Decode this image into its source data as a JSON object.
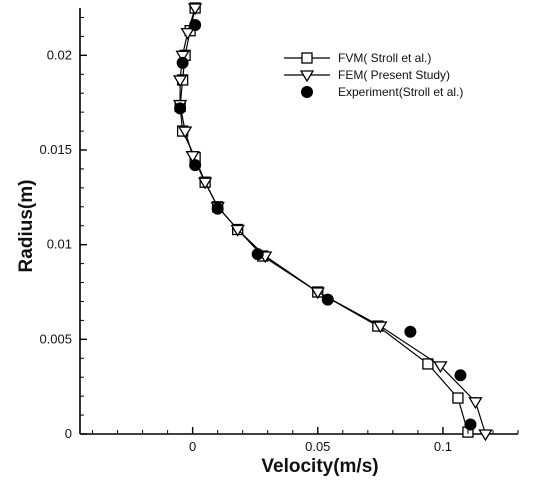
{
  "chart_data": {
    "type": "line",
    "title": "",
    "xlabel": "Velocity(m/s)",
    "ylabel": "Radius(m)",
    "xlim": [
      -0.045,
      0.13
    ],
    "ylim": [
      0,
      0.0225
    ],
    "x_ticks": [
      0,
      0.05,
      0.1
    ],
    "x_tick_labels": [
      "0",
      "0.05",
      "0.1"
    ],
    "y_ticks": [
      0,
      0.005,
      0.01,
      0.015,
      0.02
    ],
    "y_tick_labels": [
      "0",
      "0.005",
      "0.01",
      "0.015",
      "0.02"
    ],
    "grid": false,
    "legend_position": "top-right",
    "series": [
      {
        "name": "FVM( Stroll et al.)",
        "marker": "square",
        "line": true,
        "points": [
          [
            0.11,
            0.0001
          ],
          [
            0.106,
            0.0019
          ],
          [
            0.094,
            0.0037
          ],
          [
            0.074,
            0.0057
          ],
          [
            0.05,
            0.0075
          ],
          [
            0.028,
            0.0094
          ],
          [
            0.018,
            0.0108
          ],
          [
            0.01,
            0.012
          ],
          [
            0.005,
            0.0133
          ],
          [
            0.001,
            0.0146
          ],
          [
            -0.004,
            0.016
          ],
          [
            -0.005,
            0.0173
          ],
          [
            -0.004,
            0.0187
          ],
          [
            -0.003,
            0.02
          ],
          [
            -0.001,
            0.0213
          ],
          [
            0.001,
            0.0225
          ]
        ]
      },
      {
        "name": "FEM( Present Study)",
        "marker": "triangle-down",
        "line": true,
        "points": [
          [
            0.117,
            0.0
          ],
          [
            0.113,
            0.0017
          ],
          [
            0.099,
            0.0036
          ],
          [
            0.075,
            0.0057
          ],
          [
            0.05,
            0.0075
          ],
          [
            0.029,
            0.0094
          ],
          [
            0.018,
            0.0108
          ],
          [
            0.01,
            0.012
          ],
          [
            0.005,
            0.0133
          ],
          [
            0.0,
            0.0147
          ],
          [
            -0.003,
            0.016
          ],
          [
            -0.005,
            0.0174
          ],
          [
            -0.005,
            0.0187
          ],
          [
            -0.004,
            0.02
          ],
          [
            -0.002,
            0.0212
          ],
          [
            0.001,
            0.0225
          ]
        ]
      },
      {
        "name": "Experiment(Stroll et al.)",
        "marker": "filled-circle",
        "line": false,
        "points": [
          [
            0.111,
            0.0005
          ],
          [
            0.107,
            0.0031
          ],
          [
            0.087,
            0.0054
          ],
          [
            0.054,
            0.0071
          ],
          [
            0.026,
            0.0095
          ],
          [
            0.01,
            0.0119
          ],
          [
            0.001,
            0.0142
          ],
          [
            -0.005,
            0.0172
          ],
          [
            -0.004,
            0.0196
          ],
          [
            0.001,
            0.0216
          ]
        ]
      }
    ]
  }
}
